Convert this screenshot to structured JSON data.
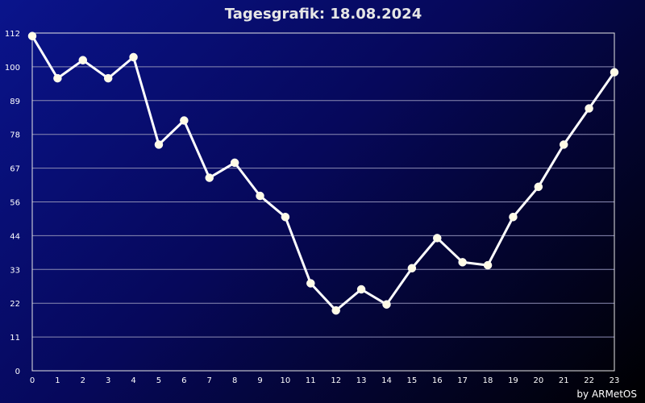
{
  "chart_data": {
    "type": "line",
    "title": "Tagesgrafik: 18.08.2024",
    "xlabel": "",
    "ylabel": "",
    "x": [
      0,
      1,
      2,
      3,
      4,
      5,
      6,
      7,
      8,
      9,
      10,
      11,
      12,
      13,
      14,
      15,
      16,
      17,
      18,
      19,
      20,
      21,
      22,
      23
    ],
    "x_tick_labels": [
      "0",
      "1",
      "2",
      "3",
      "4",
      "5",
      "6",
      "7",
      "8",
      "9",
      "10",
      "11",
      "12",
      "13",
      "14",
      "15",
      "16",
      "17",
      "18",
      "19",
      "20",
      "21",
      "22",
      "23"
    ],
    "y_tick_labels": [
      "0",
      "11",
      "22",
      "33",
      "44",
      "56",
      "67",
      "78",
      "89",
      "100",
      "112"
    ],
    "xlim": [
      0,
      23
    ],
    "ylim": [
      0,
      112
    ],
    "grid": true,
    "series": [
      {
        "values": [
          111,
          97,
          103,
          97,
          104,
          75,
          83,
          64,
          69,
          58,
          51,
          29,
          20,
          27,
          22,
          34,
          44,
          36,
          35,
          51,
          61,
          75,
          87,
          99
        ]
      }
    ],
    "colors": {
      "line": "#ffffff",
      "marker": "#fffbe6",
      "grid": "#8c8cb4",
      "frame": "#e6e6e6"
    }
  },
  "footer": {
    "credit": "by ARMetOS"
  }
}
